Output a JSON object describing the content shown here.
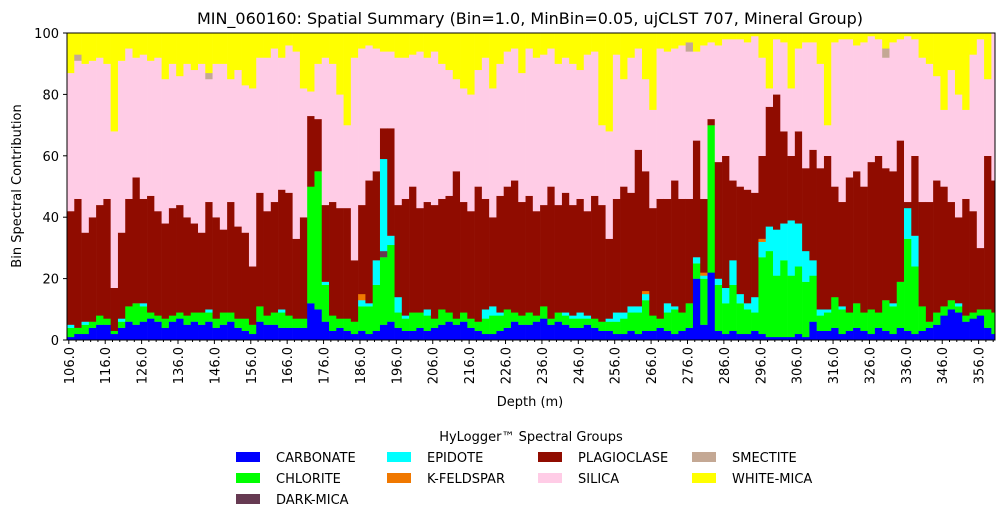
{
  "chart_data": {
    "type": "bar",
    "stacked": true,
    "title": "MIN_060160: Spatial Summary (Bin=1.0, MinBin=0.05, ujCLST 707, Mineral Group)",
    "xlabel": "Depth (m)",
    "ylabel": "Bin Spectral Contribution",
    "xlim": [
      105.5,
      360.5
    ],
    "ylim": [
      0,
      100
    ],
    "grid": false,
    "x_ticks": [
      "106.0",
      "116.0",
      "126.0",
      "136.0",
      "146.0",
      "156.0",
      "166.0",
      "176.0",
      "186.0",
      "196.0",
      "206.0",
      "216.0",
      "226.0",
      "236.0",
      "246.0",
      "256.0",
      "266.0",
      "276.0",
      "286.0",
      "296.0",
      "306.0",
      "316.0",
      "326.0",
      "336.0",
      "346.0",
      "356.0"
    ],
    "y_ticks": [
      "0",
      "20",
      "40",
      "60",
      "80",
      "100"
    ],
    "legend": {
      "title": "HyLogger™ Spectral Groups",
      "placement": "bottom-center"
    },
    "x_start": 106,
    "x_step": 2,
    "series": [
      {
        "name": "CARBONATE",
        "color": "#0000ff",
        "values": [
          1,
          2,
          2,
          4,
          5,
          5,
          2,
          4,
          6,
          5,
          6,
          7,
          6,
          4,
          6,
          7,
          5,
          6,
          5,
          6,
          4,
          5,
          6,
          4,
          3,
          2,
          6,
          5,
          5,
          4,
          4,
          4,
          4,
          12,
          10,
          6,
          3,
          4,
          3,
          2,
          3,
          2,
          3,
          5,
          6,
          4,
          3,
          3,
          4,
          3,
          4,
          5,
          6,
          5,
          6,
          4,
          3,
          2,
          2,
          3,
          4,
          6,
          5,
          5,
          6,
          7,
          5,
          6,
          5,
          4,
          4,
          5,
          4,
          3,
          3,
          2,
          2,
          3,
          2,
          3,
          3,
          4,
          3,
          2,
          3,
          4,
          20,
          5,
          22,
          3,
          2,
          3,
          2,
          2,
          3,
          2,
          1,
          1,
          1,
          1,
          2,
          1,
          6,
          3,
          3,
          4,
          2,
          3,
          4,
          3,
          2,
          4,
          3,
          2,
          4,
          3,
          2,
          3,
          4,
          5,
          8,
          10,
          9,
          6,
          7,
          8,
          4,
          2
        ]
      },
      {
        "name": "CHLORITE",
        "color": "#00ff00",
        "values": [
          3,
          2,
          3,
          2,
          3,
          2,
          1,
          2,
          5,
          7,
          5,
          2,
          2,
          3,
          2,
          2,
          3,
          3,
          4,
          3,
          3,
          4,
          3,
          3,
          4,
          3,
          5,
          3,
          4,
          5,
          4,
          3,
          3,
          38,
          45,
          12,
          5,
          3,
          4,
          4,
          8,
          9,
          15,
          22,
          25,
          5,
          4,
          6,
          5,
          5,
          3,
          5,
          3,
          2,
          3,
          3,
          3,
          5,
          6,
          5,
          6,
          3,
          3,
          4,
          2,
          4,
          2,
          3,
          3,
          3,
          3,
          2,
          3,
          3,
          3,
          4,
          5,
          6,
          7,
          10,
          5,
          3,
          6,
          8,
          6,
          8,
          5,
          15,
          48,
          15,
          10,
          15,
          10,
          8,
          6,
          25,
          28,
          20,
          25,
          20,
          22,
          18,
          15,
          5,
          6,
          10,
          8,
          6,
          8,
          6,
          8,
          5,
          10,
          9,
          15,
          30,
          22,
          8,
          2,
          4,
          3,
          3,
          2,
          2,
          2,
          2,
          6,
          7
        ]
      },
      {
        "name": "DARK-MICA",
        "color": "#663a52",
        "values": [
          0,
          0,
          0,
          0,
          0,
          0,
          0,
          0,
          0,
          0,
          0,
          0,
          0,
          0,
          0,
          0,
          0,
          0,
          0,
          0,
          0,
          0,
          0,
          0,
          0,
          0,
          0,
          0,
          0,
          0,
          0,
          0,
          0,
          0,
          0,
          0,
          0,
          0,
          0,
          0,
          0,
          0,
          0,
          2,
          0,
          0,
          0,
          0,
          0,
          0,
          0,
          0,
          0,
          0,
          0,
          0,
          0,
          0,
          0,
          0,
          0,
          0,
          0,
          0,
          0,
          0,
          0,
          0,
          0,
          0,
          0,
          0,
          0,
          0,
          0,
          0,
          0,
          0,
          0,
          0,
          0,
          0,
          0,
          0,
          0,
          0,
          0,
          0,
          0,
          0,
          0,
          0,
          0,
          0,
          0,
          0,
          0,
          0,
          0,
          0,
          0,
          0,
          0,
          0,
          0,
          0,
          0,
          0,
          0,
          0,
          0,
          0,
          0,
          0,
          0,
          0,
          0,
          0,
          0,
          0,
          0,
          0,
          0,
          0,
          0,
          0,
          0,
          0
        ]
      },
      {
        "name": "EPIDOTE",
        "color": "#00ffff",
        "values": [
          1,
          0,
          1,
          0,
          0,
          0,
          0,
          1,
          0,
          0,
          1,
          0,
          0,
          0,
          0,
          0,
          0,
          0,
          0,
          1,
          0,
          0,
          0,
          0,
          0,
          0,
          0,
          0,
          0,
          1,
          0,
          0,
          0,
          0,
          0,
          1,
          0,
          0,
          0,
          0,
          2,
          1,
          8,
          30,
          3,
          5,
          1,
          0,
          0,
          2,
          0,
          0,
          0,
          0,
          0,
          0,
          0,
          3,
          3,
          1,
          0,
          0,
          0,
          0,
          0,
          0,
          0,
          0,
          1,
          1,
          2,
          1,
          0,
          0,
          1,
          3,
          2,
          2,
          2,
          2,
          0,
          0,
          3,
          1,
          0,
          0,
          2,
          1,
          0,
          2,
          5,
          8,
          3,
          2,
          5,
          5,
          8,
          15,
          12,
          18,
          14,
          10,
          5,
          2,
          1,
          0,
          1,
          0,
          0,
          0,
          0,
          0,
          0,
          1,
          0,
          10,
          10,
          0,
          0,
          0,
          0,
          0,
          1,
          0,
          0,
          0,
          0,
          0
        ]
      },
      {
        "name": "K-FELDSPAR",
        "color": "#f07800",
        "values": [
          0,
          0,
          0,
          0,
          0,
          0,
          0,
          0,
          0,
          0,
          0,
          0,
          0,
          0,
          0,
          0,
          0,
          0,
          0,
          0,
          0,
          0,
          0,
          0,
          0,
          0,
          0,
          0,
          0,
          0,
          0,
          0,
          0,
          0,
          0,
          0,
          0,
          0,
          0,
          0,
          2,
          0,
          0,
          0,
          0,
          0,
          0,
          0,
          0,
          0,
          0,
          0,
          0,
          0,
          0,
          0,
          0,
          0,
          0,
          0,
          0,
          0,
          0,
          0,
          0,
          0,
          0,
          0,
          0,
          0,
          0,
          0,
          0,
          0,
          0,
          0,
          0,
          0,
          0,
          1,
          0,
          0,
          0,
          0,
          0,
          0,
          0,
          1,
          0,
          0,
          0,
          0,
          0,
          0,
          0,
          1,
          0,
          0,
          0,
          0,
          0,
          0,
          0,
          0,
          0,
          0,
          0,
          0,
          0,
          0,
          0,
          0,
          0,
          0,
          0,
          0,
          0,
          0,
          0,
          0,
          0,
          0,
          0,
          0,
          0,
          0,
          0,
          0
        ]
      },
      {
        "name": "PLAGIOCLASE",
        "color": "#900c00",
        "values": [
          37,
          42,
          29,
          34,
          36,
          39,
          14,
          28,
          35,
          41,
          34,
          38,
          34,
          31,
          35,
          35,
          32,
          29,
          26,
          35,
          33,
          27,
          36,
          30,
          28,
          19,
          37,
          34,
          36,
          39,
          40,
          26,
          33,
          23,
          17,
          25,
          37,
          36,
          36,
          20,
          29,
          40,
          29,
          10,
          35,
          30,
          38,
          41,
          34,
          35,
          37,
          36,
          38,
          48,
          36,
          35,
          44,
          36,
          29,
          38,
          40,
          43,
          37,
          38,
          34,
          33,
          43,
          35,
          39,
          36,
          37,
          34,
          40,
          38,
          26,
          37,
          41,
          37,
          51,
          39,
          35,
          39,
          34,
          41,
          37,
          34,
          38,
          24,
          2,
          38,
          43,
          26,
          35,
          37,
          34,
          27,
          39,
          44,
          30,
          21,
          30,
          27,
          36,
          46,
          50,
          36,
          34,
          44,
          43,
          41,
          48,
          51,
          43,
          43,
          46,
          2,
          26,
          34,
          39,
          43,
          39,
          32,
          28,
          38,
          33,
          20,
          50,
          43
        ]
      },
      {
        "name": "SILICA",
        "color": "#ffcce6",
        "values": [
          45,
          45,
          55,
          51,
          48,
          44,
          51,
          56,
          49,
          39,
          47,
          44,
          50,
          47,
          47,
          42,
          50,
          50,
          55,
          40,
          50,
          54,
          40,
          51,
          48,
          58,
          44,
          50,
          50,
          43,
          48,
          61,
          42,
          8,
          18,
          48,
          45,
          37,
          27,
          66,
          51,
          44,
          40,
          25,
          25,
          48,
          46,
          43,
          51,
          47,
          50,
          44,
          41,
          30,
          37,
          38,
          38,
          46,
          42,
          43,
          44,
          43,
          42,
          48,
          50,
          49,
          45,
          46,
          44,
          46,
          42,
          51,
          47,
          26,
          35,
          47,
          35,
          44,
          33,
          30,
          32,
          49,
          48,
          43,
          50,
          48,
          29,
          50,
          25,
          38,
          38,
          46,
          48,
          48,
          51,
          32,
          6,
          18,
          29,
          22,
          27,
          41,
          35,
          34,
          10,
          47,
          53,
          45,
          41,
          47,
          41,
          38,
          36,
          42,
          33,
          54,
          38,
          47,
          45,
          34,
          25,
          43,
          40,
          29,
          51,
          68,
          25,
          48
        ]
      },
      {
        "name": "SMECTITE",
        "color": "#c4a894",
        "values": [
          0,
          2,
          0,
          0,
          0,
          0,
          0,
          0,
          0,
          0,
          0,
          0,
          0,
          0,
          0,
          0,
          0,
          0,
          0,
          2,
          0,
          0,
          0,
          0,
          0,
          0,
          0,
          0,
          0,
          0,
          0,
          0,
          0,
          0,
          0,
          0,
          0,
          0,
          0,
          0,
          0,
          0,
          0,
          0,
          0,
          0,
          0,
          0,
          0,
          0,
          0,
          0,
          0,
          0,
          0,
          0,
          0,
          0,
          0,
          0,
          0,
          0,
          0,
          0,
          0,
          0,
          0,
          0,
          0,
          0,
          0,
          0,
          0,
          0,
          0,
          0,
          0,
          0,
          0,
          0,
          0,
          0,
          0,
          0,
          0,
          3,
          0,
          0,
          0,
          0,
          0,
          0,
          0,
          0,
          0,
          0,
          0,
          0,
          0,
          0,
          0,
          0,
          0,
          0,
          0,
          0,
          0,
          0,
          0,
          0,
          0,
          0,
          3,
          0,
          0,
          0,
          0,
          0,
          0,
          0,
          0,
          0,
          0,
          0,
          0,
          0,
          0,
          0
        ]
      },
      {
        "name": "WHITE-MICA",
        "color": "#ffff00",
        "values": [
          13,
          7,
          10,
          9,
          8,
          10,
          32,
          9,
          5,
          8,
          7,
          9,
          8,
          15,
          10,
          14,
          10,
          12,
          10,
          13,
          10,
          10,
          15,
          12,
          17,
          18,
          8,
          8,
          5,
          8,
          4,
          6,
          18,
          19,
          10,
          8,
          10,
          20,
          30,
          8,
          5,
          4,
          5,
          6,
          6,
          8,
          8,
          7,
          6,
          8,
          6,
          10,
          12,
          15,
          18,
          20,
          12,
          8,
          18,
          10,
          6,
          5,
          13,
          5,
          8,
          7,
          5,
          10,
          8,
          10,
          12,
          7,
          6,
          30,
          32,
          7,
          15,
          8,
          5,
          15,
          25,
          5,
          6,
          5,
          4,
          3,
          6,
          4,
          3,
          4,
          2,
          2,
          2,
          3,
          1,
          8,
          18,
          2,
          3,
          18,
          5,
          3,
          3,
          10,
          30,
          3,
          2,
          2,
          4,
          3,
          1,
          2,
          5,
          3,
          2,
          1,
          2,
          8,
          10,
          14,
          25,
          12,
          20,
          25,
          7,
          2,
          15,
          0
        ]
      }
    ]
  }
}
